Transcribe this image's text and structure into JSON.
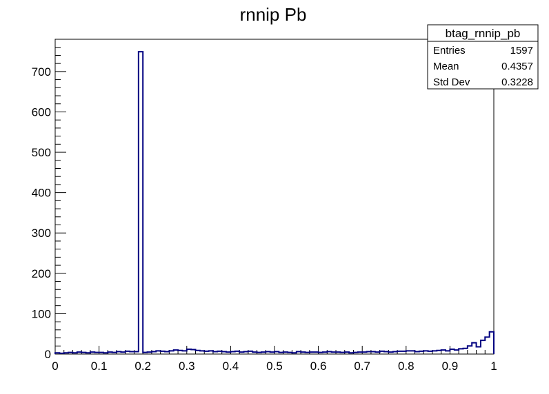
{
  "chart_data": {
    "type": "bar",
    "title": "rnnip Pb",
    "xlabel": "",
    "ylabel": "",
    "xlim": [
      0,
      1
    ],
    "ylim": [
      0,
      780
    ],
    "bins": 100,
    "x_ticks": [
      "0",
      "0.1",
      "0.2",
      "0.3",
      "0.4",
      "0.5",
      "0.6",
      "0.7",
      "0.8",
      "0.9",
      "1"
    ],
    "y_ticks": [
      "0",
      "100",
      "200",
      "300",
      "400",
      "500",
      "600",
      "700"
    ],
    "line_color": "#000080",
    "series": [
      {
        "values": [
          3,
          2,
          3,
          4,
          3,
          5,
          4,
          3,
          5,
          4,
          4,
          3,
          5,
          4,
          6,
          5,
          7,
          6,
          6,
          749,
          4,
          5,
          6,
          8,
          7,
          6,
          8,
          10,
          9,
          8,
          12,
          11,
          9,
          8,
          7,
          8,
          6,
          7,
          6,
          5,
          6,
          7,
          5,
          6,
          7,
          5,
          4,
          5,
          6,
          5,
          6,
          4,
          5,
          4,
          3,
          6,
          5,
          4,
          5,
          5,
          4,
          5,
          6,
          5,
          5,
          4,
          5,
          3,
          4,
          5,
          5,
          6,
          6,
          5,
          7,
          6,
          5,
          6,
          7,
          7,
          8,
          8,
          6,
          7,
          8,
          7,
          8,
          9,
          10,
          8,
          12,
          10,
          13,
          14,
          20,
          28,
          18,
          34,
          42,
          55
        ]
      }
    ],
    "stats": {
      "name": "btag_rnnip_pb",
      "entries_label": "Entries",
      "entries": "1597",
      "mean_label": "Mean",
      "mean": "0.4357",
      "stddev_label": "Std Dev",
      "stddev": "0.3228"
    }
  }
}
